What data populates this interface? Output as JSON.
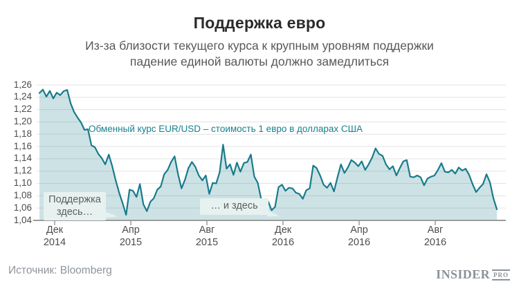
{
  "header": {
    "title": "Поддержка евро",
    "subtitle": "Из-за близости текущего курса к крупным уровням поддержки\nпадение единой валюты должно замедлиться"
  },
  "chart_data": {
    "type": "area",
    "title": "Поддержка евро",
    "series_label": "Обменный курс EUR/USD – стоимость 1 евро в долларах США",
    "xlabel": "",
    "ylabel": "",
    "ylim": [
      1.04,
      1.26
    ],
    "grid": true,
    "legend_position": "none",
    "line_color": "#177b8b",
    "fill_color": "rgba(26,124,138,0.22)",
    "y_tick_labels": [
      "1,26",
      "1,24",
      "1,22",
      "1,20",
      "1,18",
      "1,16",
      "1,14",
      "1,12",
      "1,10",
      "1,08",
      "1,06",
      "1,04"
    ],
    "x_tick_labels": [
      {
        "month": "Дек",
        "year": "2014"
      },
      {
        "month": "Апр",
        "year": "2015"
      },
      {
        "month": "Авг",
        "year": "2015"
      },
      {
        "month": "Дек",
        "year": "2016"
      },
      {
        "month": "Апр",
        "year": "2016"
      },
      {
        "month": "Авг",
        "year": "2016"
      }
    ],
    "values": [
      1.247,
      1.2525,
      1.241,
      1.2505,
      1.238,
      1.2475,
      1.2435,
      1.25,
      1.252,
      1.23,
      1.216,
      1.207,
      1.199,
      1.187,
      1.188,
      1.162,
      1.159,
      1.148,
      1.141,
      1.131,
      1.147,
      1.128,
      1.105,
      1.085,
      1.068,
      1.049,
      1.09,
      1.088,
      1.078,
      1.099,
      1.066,
      1.055,
      1.07,
      1.076,
      1.09,
      1.095,
      1.115,
      1.122,
      1.135,
      1.144,
      1.115,
      1.092,
      1.106,
      1.125,
      1.135,
      1.127,
      1.113,
      1.105,
      1.113,
      1.083,
      1.101,
      1.1,
      1.118,
      1.163,
      1.124,
      1.131,
      1.114,
      1.134,
      1.119,
      1.133,
      1.135,
      1.147,
      1.111,
      1.101,
      1.074,
      1.073,
      1.071,
      1.0565,
      1.062,
      1.094,
      1.098,
      1.088,
      1.093,
      1.092,
      1.085,
      1.083,
      1.075,
      1.089,
      1.092,
      1.129,
      1.125,
      1.113,
      1.098,
      1.093,
      1.101,
      1.087,
      1.11,
      1.131,
      1.117,
      1.126,
      1.138,
      1.134,
      1.128,
      1.136,
      1.122,
      1.131,
      1.142,
      1.157,
      1.148,
      1.145,
      1.131,
      1.123,
      1.128,
      1.113,
      1.125,
      1.136,
      1.138,
      1.111,
      1.11,
      1.113,
      1.11,
      1.097,
      1.108,
      1.111,
      1.113,
      1.122,
      1.133,
      1.119,
      1.118,
      1.122,
      1.116,
      1.126,
      1.121,
      1.124,
      1.114,
      1.099,
      1.086,
      1.093,
      1.099,
      1.115,
      1.102,
      1.076,
      1.058
    ],
    "annotations": {
      "support1": "Поддержка\nздесь…",
      "support2": "… и здесь"
    }
  },
  "footer": {
    "source": "Источник: Bloomberg",
    "logo_insider": "INSIDER",
    "logo_pro": "PRO"
  }
}
